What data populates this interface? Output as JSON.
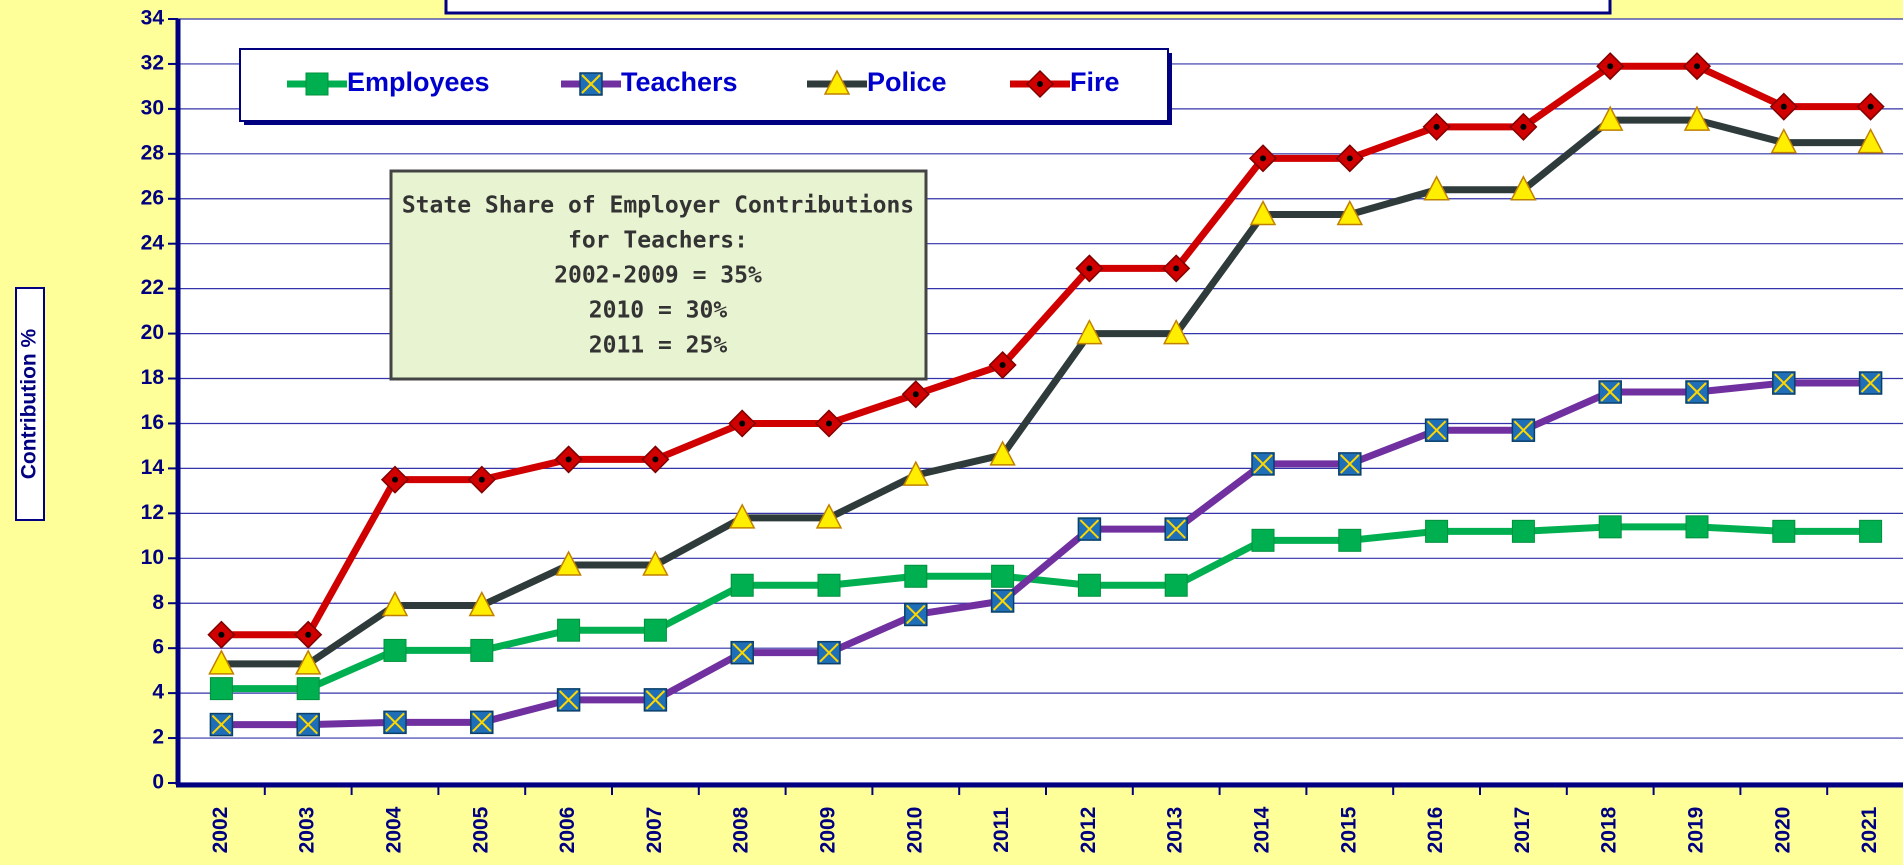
{
  "chart_data": {
    "type": "line",
    "y_label": "Contribution %",
    "categories": [
      "2002",
      "2003",
      "2004",
      "2005",
      "2006",
      "2007",
      "2008",
      "2009",
      "2010",
      "2011",
      "2012",
      "2013",
      "2014",
      "2015",
      "2016",
      "2017",
      "2018",
      "2019",
      "2020",
      "2021"
    ],
    "series": [
      {
        "name": "Employees",
        "color": "#00b050",
        "values": [
          4.2,
          4.2,
          5.9,
          5.9,
          6.8,
          6.8,
          8.8,
          8.8,
          9.2,
          9.2,
          8.8,
          8.8,
          10.8,
          10.8,
          11.2,
          11.2,
          11.4,
          11.4,
          11.2,
          11.2
        ]
      },
      {
        "name": "Teachers",
        "color": "#7030a0",
        "values": [
          2.6,
          2.6,
          2.7,
          2.7,
          3.7,
          3.7,
          5.8,
          5.8,
          7.5,
          8.1,
          11.3,
          11.3,
          14.2,
          14.2,
          15.7,
          15.7,
          17.4,
          17.4,
          17.8,
          17.8
        ]
      },
      {
        "name": "Police",
        "color": "#2f3b3b",
        "values": [
          5.3,
          5.3,
          7.9,
          7.9,
          9.7,
          9.7,
          11.8,
          11.8,
          13.7,
          14.6,
          20.0,
          20.0,
          25.3,
          25.3,
          26.4,
          26.4,
          29.5,
          29.5,
          28.5,
          28.5
        ]
      },
      {
        "name": "Fire",
        "color": "#d00000",
        "values": [
          6.6,
          6.6,
          13.5,
          13.5,
          14.4,
          14.4,
          16.0,
          16.0,
          17.3,
          18.6,
          22.9,
          22.9,
          27.8,
          27.8,
          29.2,
          29.2,
          31.9,
          31.9,
          30.1,
          30.1
        ]
      }
    ],
    "ylim": [
      0,
      34
    ],
    "yticks": [
      0,
      2,
      4,
      6,
      8,
      10,
      12,
      14,
      16,
      18,
      20,
      22,
      24,
      26,
      28,
      30,
      32,
      34
    ],
    "grid": true,
    "legend": "top-left",
    "annotation": [
      "State Share of Employer Contributions",
      "for Teachers:",
      "2002-2009 = 35%",
      "2010 = 30%",
      "2011 = 25%"
    ]
  }
}
